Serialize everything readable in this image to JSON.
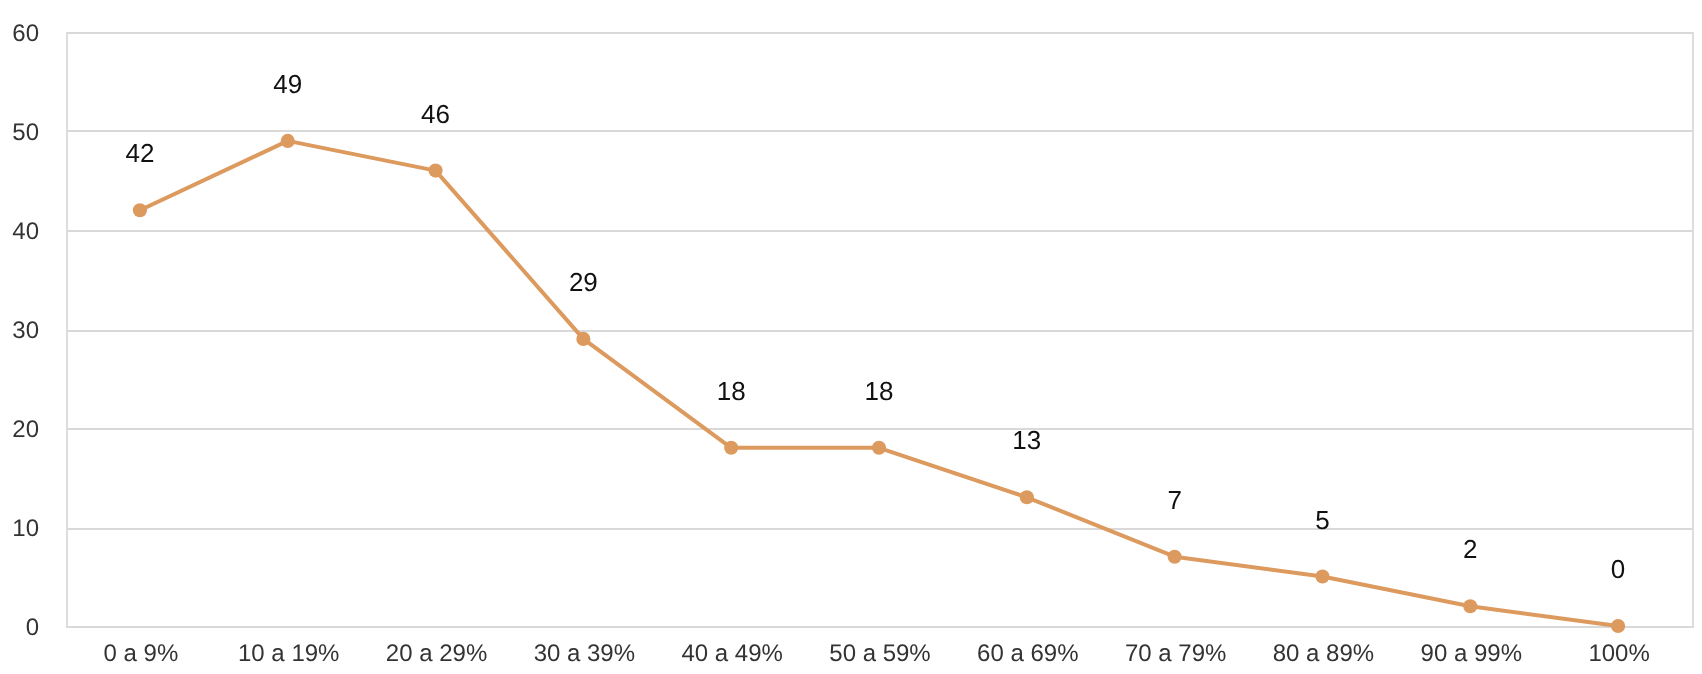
{
  "chart_data": {
    "type": "line",
    "categories": [
      "0 a 9%",
      "10 a 19%",
      "20 a 29%",
      "30 a 39%",
      "40 a 49%",
      "50 a 59%",
      "60 a 69%",
      "70 a 79%",
      "80 a 89%",
      "90 a 99%",
      "100%"
    ],
    "series": [
      {
        "color": "#dd9a5e",
        "values": [
          42,
          49,
          46,
          29,
          18,
          18,
          13,
          7,
          5,
          2,
          0
        ]
      }
    ],
    "data_labels": true,
    "ylim": [
      0,
      60
    ],
    "yticks": [
      0,
      10,
      20,
      30,
      40,
      50,
      60
    ],
    "grid": "y",
    "marker": "circle",
    "line_style": "solid"
  }
}
